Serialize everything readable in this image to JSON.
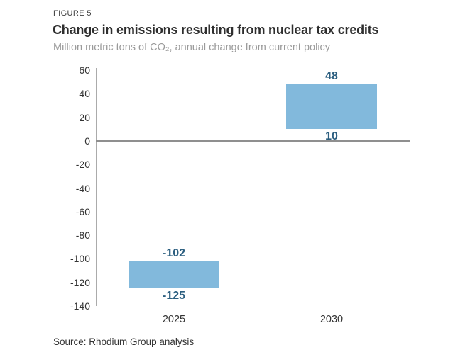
{
  "figure_label": "FIGURE 5",
  "title": "Change in emissions resulting from nuclear tax credits",
  "subtitle": "Million metric tons of CO₂, annual change from current policy",
  "source": "Source: Rhodium Group analysis",
  "chart_data": {
    "type": "bar",
    "subtype": "floating-range-bars",
    "title": "Change in emissions resulting from nuclear tax credits",
    "subtitle": "Million metric tons of CO₂, annual change from current policy",
    "categories": [
      "2025",
      "2030"
    ],
    "series": [
      {
        "name": "Annual emissions change range",
        "ranges": [
          {
            "low": -125,
            "high": -102
          },
          {
            "low": 10,
            "high": 48
          }
        ]
      }
    ],
    "value_labels": [
      {
        "high": "-102",
        "low": "-125"
      },
      {
        "high": "48",
        "low": "10"
      }
    ],
    "yticks": [
      60,
      40,
      20,
      0,
      -20,
      -40,
      -60,
      -80,
      -100,
      -120,
      -140
    ],
    "ylim": [
      -140,
      60
    ],
    "xlabel": "",
    "ylabel": "",
    "grid": false,
    "legend": false,
    "bar_color": "#82b9dc",
    "value_label_color": "#2c5f80",
    "axis_color": "#ababab",
    "zero_line_color": "#8f8f8f"
  }
}
